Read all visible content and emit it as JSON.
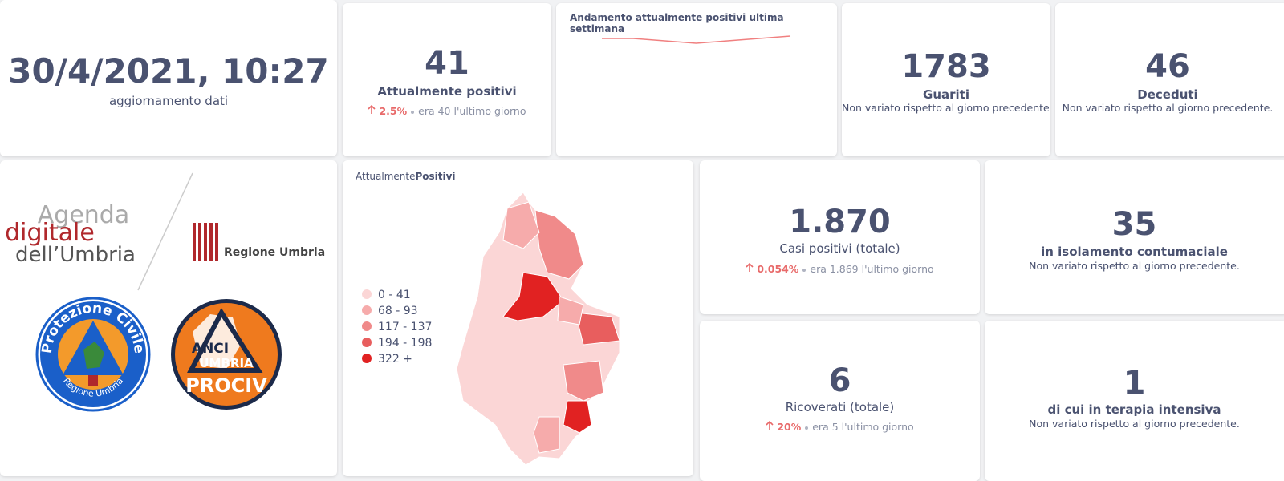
{
  "update": {
    "datetime": "30/4/2021, 10:27",
    "label": "aggiornamento dati"
  },
  "positivi": {
    "value": "41",
    "label": "Attualmente positivi",
    "pct": "2.5%",
    "prev": "era 40",
    "suffix": "l'ultimo giorno"
  },
  "trend": {
    "title": "Andamento attualmente positivi ultima settimana",
    "values": [
      40,
      40,
      39,
      38,
      39,
      40,
      41
    ],
    "color": "#f08080"
  },
  "guariti": {
    "value": "1783",
    "label": "Guariti",
    "note": "Non variato rispetto al giorno precedente."
  },
  "deceduti": {
    "value": "46",
    "label": "Deceduti",
    "note": "Non variato rispetto al giorno precedente."
  },
  "logos": {
    "agenda": [
      "Agenda",
      "digitale",
      "dell’Umbria"
    ],
    "regione": "Regione Umbria",
    "protezione": "Protezione Civile",
    "protezione_sub": "Regione Umbria",
    "anci": [
      "ANCI",
      "UMBRIA",
      "PROCIV"
    ]
  },
  "map": {
    "title": [
      "Attualmente",
      "Positivi"
    ],
    "legend": [
      {
        "label": "0 - 41",
        "color": "#fbd6d6"
      },
      {
        "label": "68 - 93",
        "color": "#f6abab"
      },
      {
        "label": "117 - 137",
        "color": "#f08a8a"
      },
      {
        "label": "194 - 198",
        "color": "#e85e5e"
      },
      {
        "label": "322 +",
        "color": "#e12222"
      }
    ]
  },
  "casi": {
    "value": "1.870",
    "label": "Casi positivi (totale)",
    "pct": "0.054%",
    "prev": "era 1.869",
    "suffix": "l'ultimo giorno"
  },
  "isolamento": {
    "value": "35",
    "label": "in isolamento contumaciale",
    "note": "Non variato rispetto al giorno precedente."
  },
  "ricoverati": {
    "value": "6",
    "label": "Ricoverati (totale)",
    "pct": "20%",
    "prev": "era 5",
    "suffix": "l'ultimo giorno"
  },
  "terapia": {
    "value": "1",
    "label": "di cui in terapia intensiva",
    "note": "Non variato rispetto al giorno precedente."
  }
}
